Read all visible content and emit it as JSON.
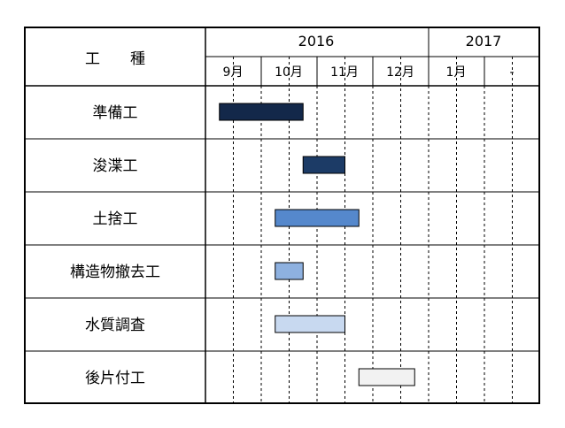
{
  "header": {
    "work_type_label": "工　　種",
    "years": [
      "2016",
      "2017"
    ]
  },
  "months": [
    "9月",
    "10月",
    "11月",
    "12月",
    "1月",
    "-"
  ],
  "tasks": [
    {
      "name": "準備工",
      "start_half": 0.5,
      "end_half": 3.5,
      "color": "#13284a"
    },
    {
      "name": "浚渫工",
      "start_half": 3.5,
      "end_half": 5.0,
      "color": "#1c3b66"
    },
    {
      "name": "土捨工",
      "start_half": 2.5,
      "end_half": 5.5,
      "color": "#5588cc"
    },
    {
      "name": "構造物撤去工",
      "start_half": 2.5,
      "end_half": 3.5,
      "color": "#8eb1e0"
    },
    {
      "name": "水質調査",
      "start_half": 2.5,
      "end_half": 5.0,
      "color": "#c8d9f0"
    },
    {
      "name": "後片付工",
      "start_half": 5.5,
      "end_half": 7.5,
      "color": "#f2f2f2"
    }
  ],
  "colors": {
    "border": "#000000",
    "grid": "#000000"
  }
}
